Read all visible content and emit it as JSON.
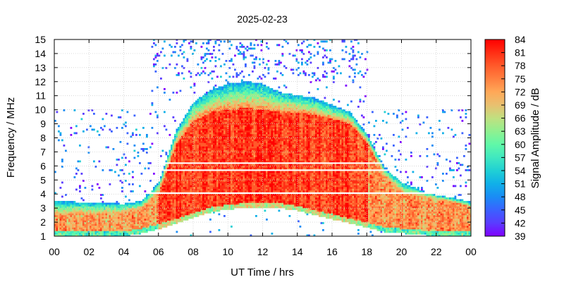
{
  "chart_data": {
    "type": "heatmap",
    "title": "2025-02-23",
    "xlabel": "UT Time / hrs",
    "ylabel": "Frequency / MHz",
    "colorbar_label": "Signal Amplitude / dB",
    "xlim": [
      0,
      24
    ],
    "ylim": [
      1,
      15
    ],
    "x_tick_labels": [
      "00",
      "02",
      "04",
      "06",
      "08",
      "10",
      "12",
      "14",
      "16",
      "18",
      "20",
      "22",
      "00"
    ],
    "y_tick_labels": [
      "1",
      "2",
      "3",
      "4",
      "5",
      "6",
      "7",
      "8",
      "9",
      "10",
      "11",
      "12",
      "13",
      "14",
      "15"
    ],
    "colorbar_ticks": [
      "39",
      "42",
      "45",
      "48",
      "51",
      "54",
      "57",
      "60",
      "63",
      "66",
      "69",
      "72",
      "75",
      "78",
      "81",
      "84"
    ],
    "colorbar_range": [
      39,
      84
    ],
    "colorbar_colors": [
      "#8000ff",
      "#5a3cff",
      "#3a62ff",
      "#1a8cf5",
      "#10b0e8",
      "#20d0d4",
      "#40e8c0",
      "#60f8a8",
      "#90f090",
      "#c0e080",
      "#e8c070",
      "#ffa858",
      "#ff8040",
      "#ff5a2a",
      "#ff2e14",
      "#ff0000"
    ],
    "grid": true,
    "summary_profile": {
      "hours": [
        0,
        2,
        4,
        5,
        6,
        7,
        8,
        9,
        10,
        11,
        12,
        13,
        14,
        15,
        16,
        17,
        18,
        19,
        20,
        21,
        22,
        23,
        24
      ],
      "red_region_upper_mhz": [
        2.5,
        2.5,
        2.6,
        2.9,
        4.0,
        7.5,
        9.2,
        9.8,
        10.0,
        10.1,
        10.0,
        9.8,
        9.8,
        9.6,
        9.3,
        9.0,
        7.6,
        5.2,
        4.0,
        3.8,
        3.6,
        3.4,
        3.0
      ],
      "signal_upper_mhz": [
        3.5,
        3.4,
        3.3,
        3.5,
        4.8,
        8.5,
        10.5,
        11.4,
        11.8,
        12.0,
        11.8,
        11.2,
        11.0,
        10.8,
        10.3,
        9.8,
        8.2,
        5.8,
        4.8,
        4.3,
        3.9,
        3.7,
        3.4
      ],
      "lower_edge_mhz": [
        1,
        1,
        1,
        1.2,
        1.5,
        1.9,
        2.3,
        2.7,
        2.9,
        3.0,
        3.0,
        3.0,
        2.8,
        2.5,
        2.2,
        1.9,
        1.6,
        1.3,
        1.2,
        1.1,
        1,
        1,
        1
      ]
    }
  }
}
